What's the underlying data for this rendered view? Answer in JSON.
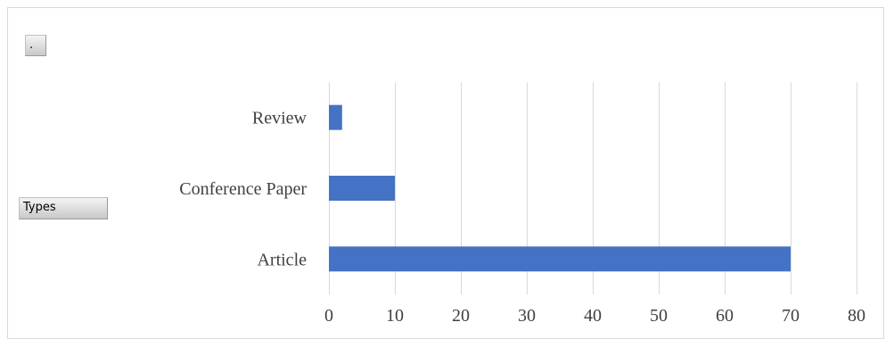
{
  "filter_field": {
    "label": "."
  },
  "row_field": {
    "label": "Types"
  },
  "colors": {
    "bar": "#4472c4",
    "grid": "#d9d9d9",
    "text": "#404040"
  },
  "chart_data": {
    "type": "bar",
    "orientation": "horizontal",
    "title": "",
    "xlabel": "",
    "ylabel": "",
    "categories": [
      "Review",
      "Conference Paper",
      "Article"
    ],
    "values": [
      2,
      10,
      70
    ],
    "xlim": [
      0,
      80
    ],
    "xticks": [
      0,
      10,
      20,
      30,
      40,
      50,
      60,
      70,
      80
    ],
    "grid": true,
    "legend": "none"
  }
}
